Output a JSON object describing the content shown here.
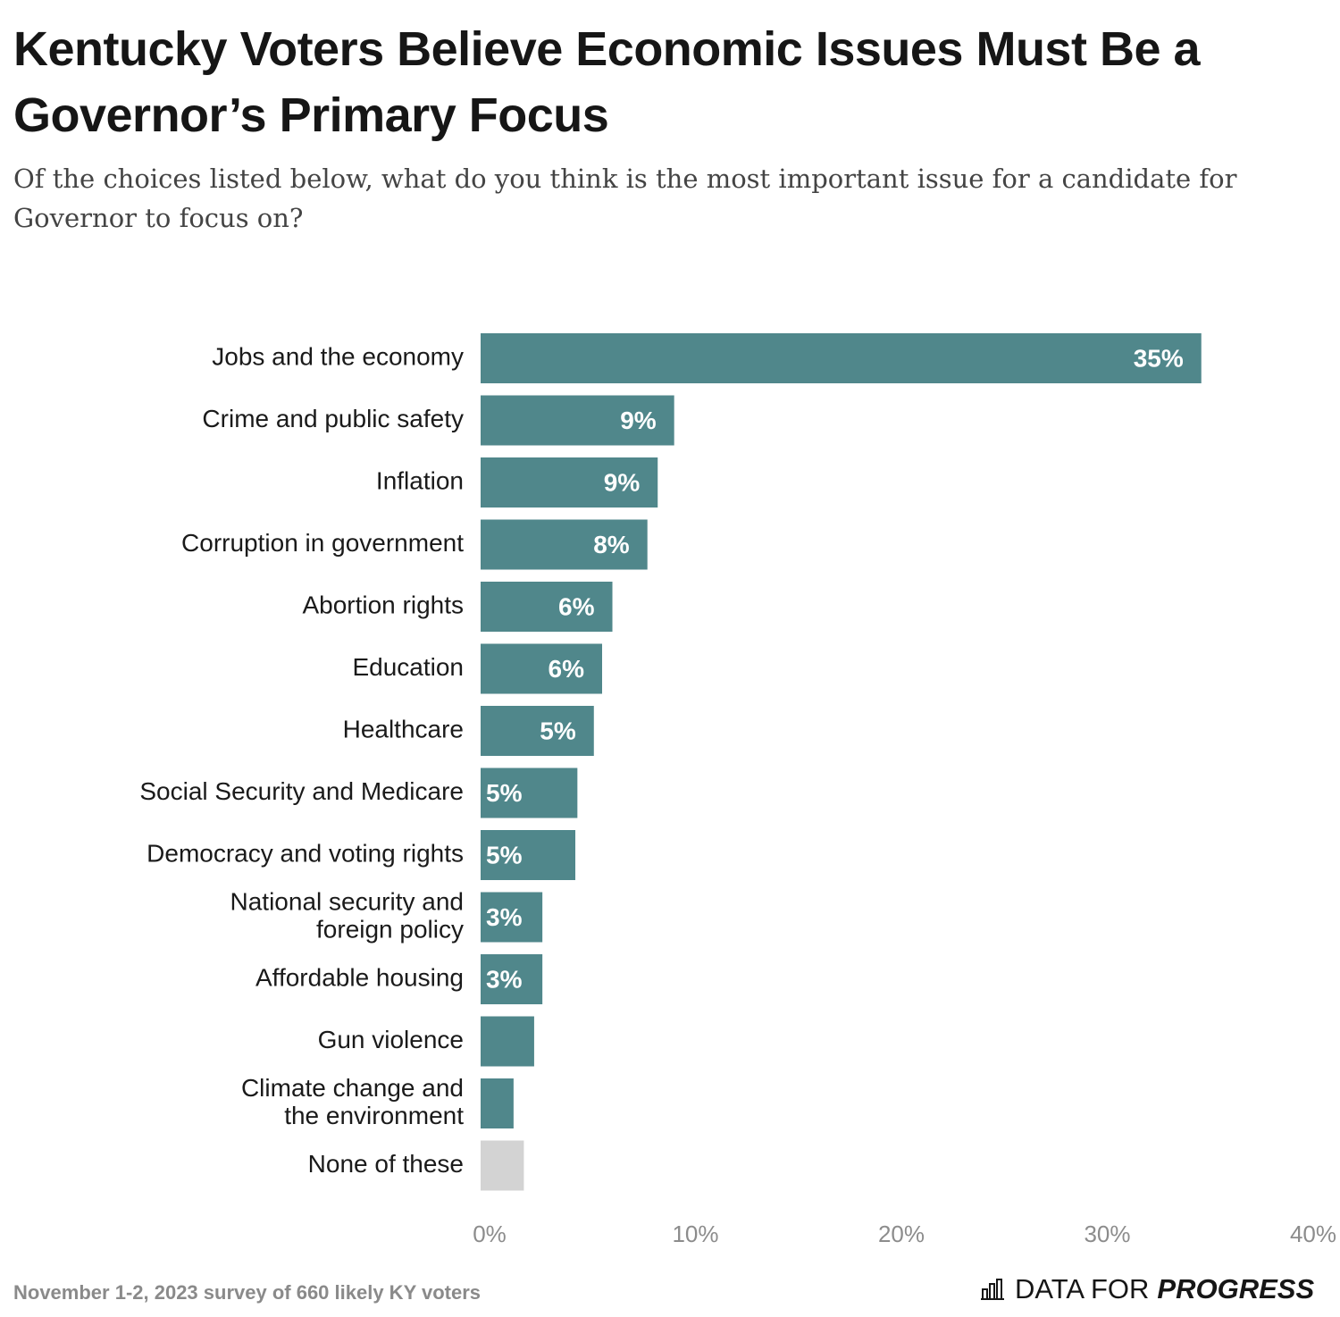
{
  "header": {
    "title": "Kentucky Voters Believe Economic Issues Must Be a Governor’s Primary Focus",
    "subtitle": "Of the choices listed below, what do you think is the most important issue for a candidate for Governor to focus on?"
  },
  "footer": {
    "note": "November 1-2, 2023 survey of 660 likely KY voters",
    "brand_light": "DATA FOR",
    "brand_bold": "PROGRESS",
    "brand_icon": "bar-chart-icon"
  },
  "colors": {
    "bar": "#50878b",
    "bar_none": "#d3d3d3",
    "label_text": "#1a1a1a",
    "value_text": "#ffffff",
    "tick_text": "#8c8c8c"
  },
  "chart_data": {
    "type": "bar",
    "orientation": "horizontal",
    "categories": [
      "Jobs and the economy",
      "Crime and public safety",
      "Inflation",
      "Corruption in government",
      "Abortion rights",
      "Education",
      "Healthcare",
      "Social Security and Medicare",
      "Democracy and voting rights",
      "National security and foreign policy",
      "Affordable housing",
      "Gun violence",
      "Climate change and the environment",
      "None of these"
    ],
    "values": [
      35,
      9.4,
      8.6,
      8.1,
      6.4,
      5.9,
      5.5,
      4.7,
      4.6,
      3,
      3,
      2.6,
      1.6,
      2.1
    ],
    "value_labels": [
      "35%",
      "9%",
      "9%",
      "8%",
      "6%",
      "6%",
      "5%",
      "5%",
      "5%",
      "3%",
      "3%",
      "",
      "",
      ""
    ],
    "xlim": [
      0,
      40
    ],
    "x_ticks": [
      0,
      10,
      20,
      30,
      40
    ],
    "x_tick_labels": [
      "0%",
      "10%",
      "20%",
      "30%",
      "40%"
    ],
    "grid": false,
    "legend": "none"
  }
}
